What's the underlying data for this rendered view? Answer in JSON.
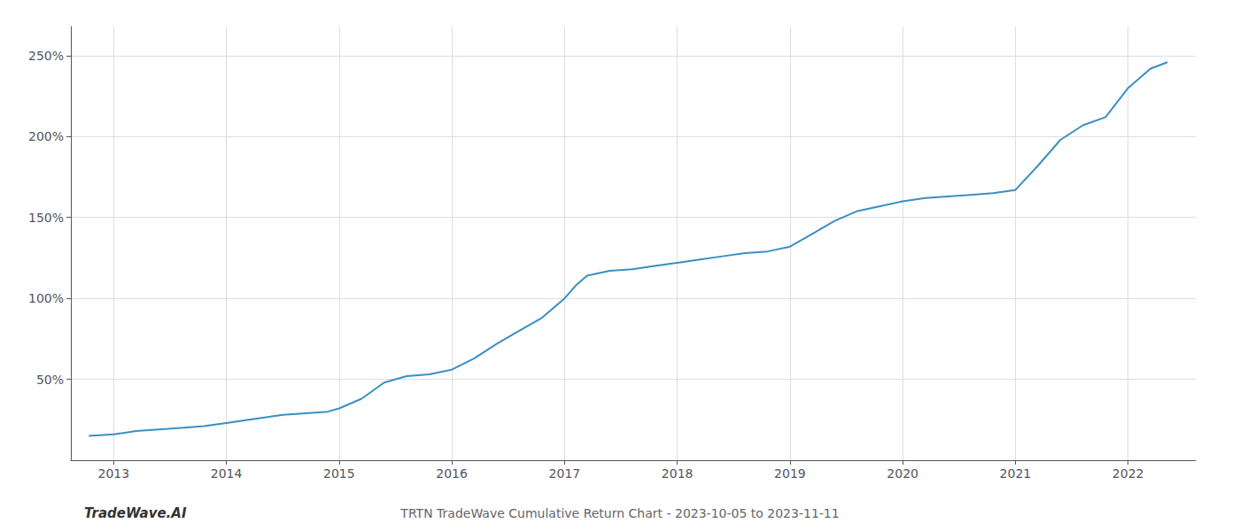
{
  "chart_data": {
    "type": "line",
    "title": "TRTN TradeWave Cumulative Return Chart - 2023-10-05 to 2023-11-11",
    "annotations": [
      "TradeWave.AI"
    ],
    "color": "#3a8fc2",
    "grid": true,
    "xlim": [
      2012.62,
      2022.6
    ],
    "xticks": [
      2013,
      2014,
      2015,
      2016,
      2017,
      2018,
      2019,
      2020,
      2021,
      2022
    ],
    "ylim": [
      0,
      268
    ],
    "yticks": [
      {
        "value": 50,
        "label": "50%"
      },
      {
        "value": 100,
        "label": "100%"
      },
      {
        "value": 150,
        "label": "150%"
      },
      {
        "value": 200,
        "label": "200%"
      },
      {
        "value": 250,
        "label": "250%"
      }
    ],
    "x": [
      2012.78,
      2013.0,
      2013.1,
      2013.2,
      2013.4,
      2013.6,
      2013.8,
      2014.0,
      2014.2,
      2014.5,
      2014.7,
      2014.9,
      2015.0,
      2015.2,
      2015.4,
      2015.6,
      2015.8,
      2016.0,
      2016.2,
      2016.4,
      2016.6,
      2016.8,
      2017.0,
      2017.1,
      2017.2,
      2017.4,
      2017.6,
      2017.8,
      2018.0,
      2018.2,
      2018.4,
      2018.6,
      2018.8,
      2019.0,
      2019.2,
      2019.4,
      2019.6,
      2019.8,
      2020.0,
      2020.2,
      2020.4,
      2020.6,
      2020.8,
      2021.0,
      2021.2,
      2021.4,
      2021.6,
      2021.8,
      2022.0,
      2022.2,
      2022.35
    ],
    "values": [
      15,
      16,
      17,
      18,
      19,
      20,
      21,
      23,
      25,
      28,
      29,
      30,
      32,
      38,
      48,
      52,
      53,
      56,
      63,
      72,
      80,
      88,
      100,
      108,
      114,
      117,
      118,
      120,
      122,
      124,
      126,
      128,
      129,
      132,
      140,
      148,
      154,
      157,
      160,
      162,
      163,
      164,
      165,
      167,
      182,
      198,
      207,
      212,
      230,
      242,
      246
    ]
  }
}
